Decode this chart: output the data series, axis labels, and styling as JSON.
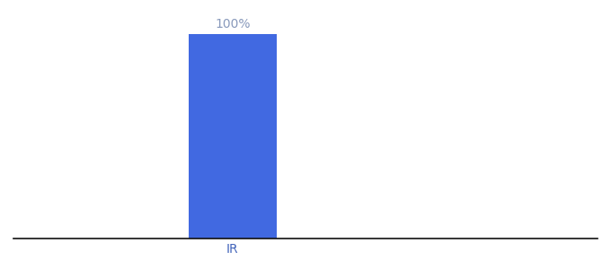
{
  "categories": [
    "IR"
  ],
  "values": [
    100
  ],
  "bar_colors": [
    "#4169E1"
  ],
  "bar_label": "100%",
  "bar_label_color": "#8899bb",
  "xlabel_color": "#4466bb",
  "ylim": [
    0,
    110
  ],
  "xlim": [
    -1.5,
    2.5
  ],
  "bar_width": 0.6,
  "background_color": "#ffffff",
  "label_fontsize": 10,
  "tick_fontsize": 10,
  "axis_line_color": "#111111"
}
